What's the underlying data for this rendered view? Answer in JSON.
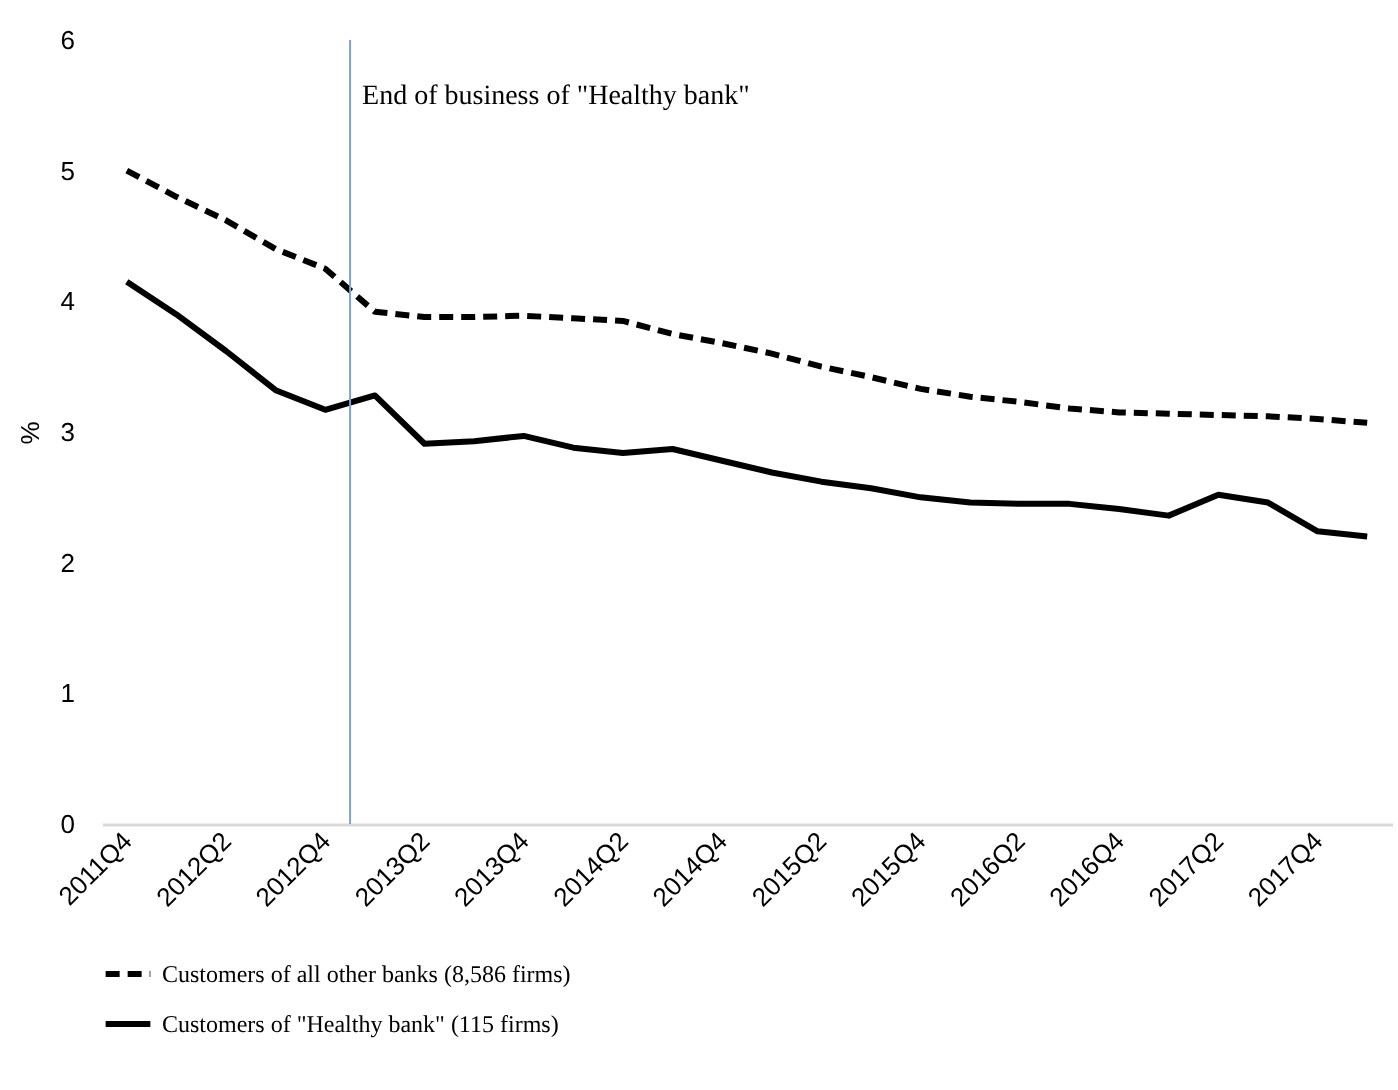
{
  "chart_data": {
    "type": "line",
    "ylabel": "%",
    "categories": [
      "2011Q4",
      null,
      "2012Q2",
      null,
      "2012Q4",
      null,
      "2013Q2",
      null,
      "2013Q4",
      null,
      "2014Q2",
      null,
      "2014Q4",
      null,
      "2015Q2",
      null,
      "2015Q4",
      null,
      "2016Q2",
      null,
      "2016Q4",
      null,
      "2017Q2",
      null,
      "2017Q4",
      null
    ],
    "series": [
      {
        "name": "Customers of all other banks (8,586 firms)",
        "color": "#000000",
        "line_style": "dashed",
        "values": [
          5.0,
          4.8,
          4.62,
          4.4,
          4.25,
          3.92,
          3.88,
          3.88,
          3.89,
          3.87,
          3.85,
          3.75,
          3.68,
          3.6,
          3.5,
          3.42,
          3.33,
          3.27,
          3.23,
          3.18,
          3.15,
          3.14,
          3.13,
          3.12,
          3.1,
          3.07
        ]
      },
      {
        "name": "Customers of \"Healthy bank\" (115 firms)",
        "color": "#000000",
        "line_style": "solid",
        "values": [
          4.15,
          3.9,
          3.62,
          3.32,
          3.17,
          3.28,
          2.91,
          2.93,
          2.97,
          2.88,
          2.84,
          2.87,
          2.78,
          2.69,
          2.62,
          2.57,
          2.5,
          2.46,
          2.45,
          2.45,
          2.41,
          2.36,
          2.52,
          2.46,
          2.24,
          2.2
        ]
      }
    ],
    "ylim": [
      0,
      6
    ],
    "yticks": [
      0,
      1,
      2,
      3,
      4,
      5,
      6
    ],
    "grid": false,
    "legend": "bottom",
    "ref_lines": [
      {
        "axis": "x",
        "value": "2012Q4",
        "label": "End of business of \"Healthy bank\"",
        "color": "#7ba3d6"
      }
    ]
  }
}
